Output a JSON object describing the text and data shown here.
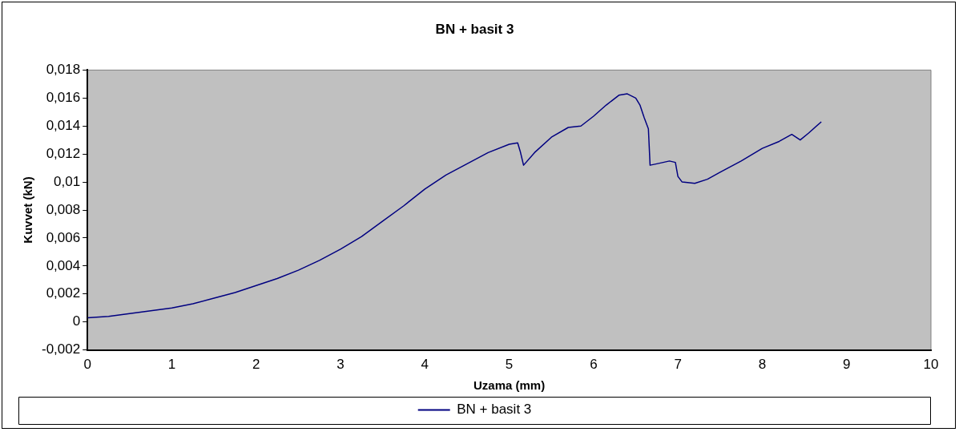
{
  "chart_data": {
    "type": "line",
    "title": "BN + basit 3",
    "xlabel": "Uzama (mm)",
    "ylabel": "Kuvvet (kN)",
    "xlim": [
      0,
      10
    ],
    "xticks": [
      0,
      1,
      2,
      3,
      4,
      5,
      6,
      7,
      8,
      9,
      10
    ],
    "ylim": [
      -0.002,
      0.018
    ],
    "yticks": [
      {
        "value": -0.002,
        "label": "-0,002"
      },
      {
        "value": 0,
        "label": "0"
      },
      {
        "value": 0.002,
        "label": "0,002"
      },
      {
        "value": 0.004,
        "label": "0,004"
      },
      {
        "value": 0.006,
        "label": "0,006"
      },
      {
        "value": 0.008,
        "label": "0,008"
      },
      {
        "value": 0.01,
        "label": "0,01"
      },
      {
        "value": 0.012,
        "label": "0,012"
      },
      {
        "value": 0.014,
        "label": "0,014"
      },
      {
        "value": 0.016,
        "label": "0,016"
      },
      {
        "value": 0.018,
        "label": "0,018"
      }
    ],
    "grid": false,
    "legend": "bottom",
    "marker": "none",
    "line_style": "solid",
    "series": [
      {
        "name": "BN + basit 3",
        "color": "#000080",
        "x": [
          0,
          0.25,
          0.5,
          0.75,
          1,
          1.25,
          1.5,
          1.75,
          2,
          2.25,
          2.5,
          2.75,
          3,
          3.25,
          3.5,
          3.75,
          4,
          4.25,
          4.5,
          4.75,
          5,
          5.1,
          5.13,
          5.17,
          5.3,
          5.5,
          5.7,
          5.85,
          6,
          6.15,
          6.3,
          6.4,
          6.5,
          6.55,
          6.6,
          6.65,
          6.67,
          6.75,
          6.9,
          6.97,
          7,
          7.05,
          7.2,
          7.35,
          7.5,
          7.75,
          8,
          8.2,
          8.35,
          8.45,
          8.55,
          8.7
        ],
        "values": [
          0.0003,
          0.0004,
          0.0006,
          0.0008,
          0.001,
          0.0013,
          0.0017,
          0.0021,
          0.0026,
          0.0031,
          0.0037,
          0.0044,
          0.0052,
          0.0061,
          0.0072,
          0.0083,
          0.0095,
          0.0105,
          0.0113,
          0.0121,
          0.0127,
          0.0128,
          0.0122,
          0.0112,
          0.0121,
          0.0132,
          0.0139,
          0.014,
          0.0147,
          0.0155,
          0.0162,
          0.0163,
          0.016,
          0.0155,
          0.0146,
          0.0138,
          0.0112,
          0.0113,
          0.0115,
          0.0114,
          0.0104,
          0.01,
          0.0099,
          0.0102,
          0.0107,
          0.0115,
          0.0124,
          0.0129,
          0.0134,
          0.013,
          0.0135,
          0.0143
        ]
      }
    ]
  }
}
